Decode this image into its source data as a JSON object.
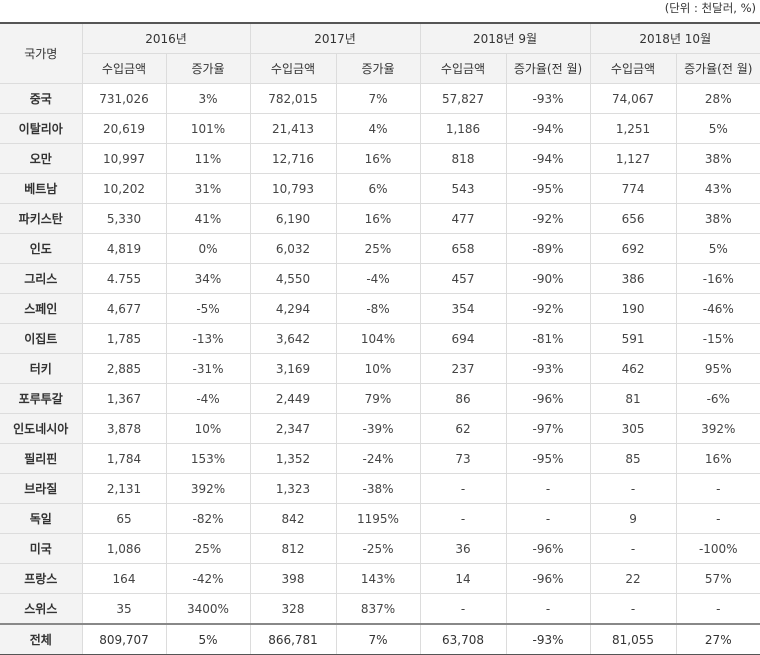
{
  "unit_note": "(단위 : 천달러, %)",
  "header": {
    "country_col": "국가명",
    "periods": [
      "2016년",
      "2017년",
      "2018년 9월",
      "2018년 10월"
    ],
    "subcols": [
      "수입금액",
      "증가율",
      "수입금액",
      "증가율",
      "수입금액",
      "증가율(전 월)",
      "수입금액",
      "증가율(전 월)"
    ]
  },
  "rows": [
    {
      "country": "중국",
      "cells": [
        "731,026",
        "3%",
        "782,015",
        "7%",
        "57,827",
        "-93%",
        "74,067",
        "28%"
      ]
    },
    {
      "country": "이탈리아",
      "cells": [
        "20,619",
        "101%",
        "21,413",
        "4%",
        "1,186",
        "-94%",
        "1,251",
        "5%"
      ]
    },
    {
      "country": "오만",
      "cells": [
        "10,997",
        "11%",
        "12,716",
        "16%",
        "818",
        "-94%",
        "1,127",
        "38%"
      ]
    },
    {
      "country": "베트남",
      "cells": [
        "10,202",
        "31%",
        "10,793",
        "6%",
        "543",
        "-95%",
        "774",
        "43%"
      ]
    },
    {
      "country": "파키스탄",
      "cells": [
        "5,330",
        "41%",
        "6,190",
        "16%",
        "477",
        "-92%",
        "656",
        "38%"
      ]
    },
    {
      "country": "인도",
      "cells": [
        "4,819",
        "0%",
        "6,032",
        "25%",
        "658",
        "-89%",
        "692",
        "5%"
      ]
    },
    {
      "country": "그리스",
      "cells": [
        "4.755",
        "34%",
        "4,550",
        "-4%",
        "457",
        "-90%",
        "386",
        "-16%"
      ]
    },
    {
      "country": "스페인",
      "cells": [
        "4,677",
        "-5%",
        "4,294",
        "-8%",
        "354",
        "-92%",
        "190",
        "-46%"
      ]
    },
    {
      "country": "이집트",
      "cells": [
        "1,785",
        "-13%",
        "3,642",
        "104%",
        "694",
        "-81%",
        "591",
        "-15%"
      ]
    },
    {
      "country": "터키",
      "cells": [
        "2,885",
        "-31%",
        "3,169",
        "10%",
        "237",
        "-93%",
        "462",
        "95%"
      ]
    },
    {
      "country": "포루투갈",
      "cells": [
        "1,367",
        "-4%",
        "2,449",
        "79%",
        "86",
        "-96%",
        "81",
        "-6%"
      ]
    },
    {
      "country": "인도네시아",
      "cells": [
        "3,878",
        "10%",
        "2,347",
        "-39%",
        "62",
        "-97%",
        "305",
        "392%"
      ]
    },
    {
      "country": "필리핀",
      "cells": [
        "1,784",
        "153%",
        "1,352",
        "-24%",
        "73",
        "-95%",
        "85",
        "16%"
      ]
    },
    {
      "country": "브라질",
      "cells": [
        "2,131",
        "392%",
        "1,323",
        "-38%",
        "-",
        "-",
        "-",
        "-"
      ]
    },
    {
      "country": "독일",
      "cells": [
        "65",
        "-82%",
        "842",
        "1195%",
        "-",
        "-",
        "9",
        "-"
      ]
    },
    {
      "country": "미국",
      "cells": [
        "1,086",
        "25%",
        "812",
        "-25%",
        "36",
        "-96%",
        "-",
        "-100%"
      ]
    },
    {
      "country": "프랑스",
      "cells": [
        "164",
        "-42%",
        "398",
        "143%",
        "14",
        "-96%",
        "22",
        "57%"
      ]
    },
    {
      "country": "스위스",
      "cells": [
        "35",
        "3400%",
        "328",
        "837%",
        "-",
        "-",
        "-",
        "-"
      ]
    }
  ],
  "total": {
    "country": "전체",
    "cells": [
      "809,707",
      "5%",
      "866,781",
      "7%",
      "63,708",
      "-93%",
      "81,055",
      "27%"
    ]
  }
}
